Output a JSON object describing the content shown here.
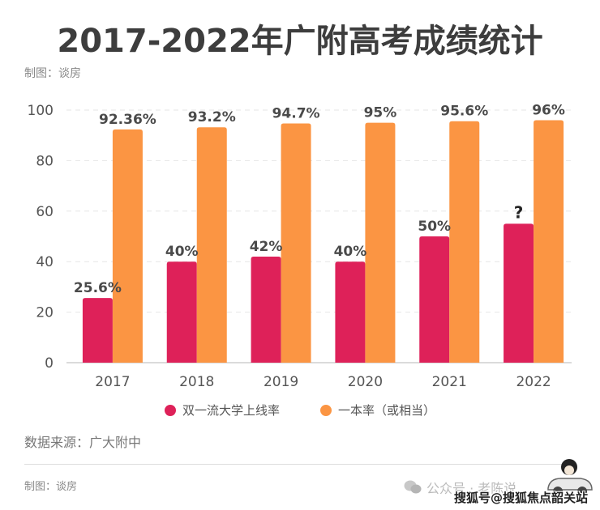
{
  "title": "2017-2022年广附高考成绩统计",
  "credit_top": "制图：谈房",
  "source": "数据来源：广大附中",
  "credit_bottom": "制图：谈房",
  "watermark_wechat": "公众号 · 老陈说",
  "watermark_sohu": "搜狐号@搜狐焦点韶关站",
  "colors": {
    "series1": "#de2159",
    "series2": "#fb9543",
    "axis_text": "#555555",
    "grid": "#e6e6e6"
  },
  "chart_data": {
    "type": "bar",
    "title": "2017-2022年广附高考成绩统计",
    "xlabel": "",
    "ylabel": "",
    "categories": [
      "2017",
      "2018",
      "2019",
      "2020",
      "2021",
      "2022"
    ],
    "ylim": [
      0,
      100
    ],
    "yticks": [
      0,
      20,
      40,
      60,
      80,
      100
    ],
    "grid": true,
    "legend_position": "bottom",
    "series": [
      {
        "name": "双一流大学上线率",
        "values": [
          25.6,
          40,
          42,
          40,
          50,
          55
        ],
        "labels": [
          "25.6%",
          "40%",
          "42%",
          "40%",
          "50%",
          "?"
        ]
      },
      {
        "name": "一本率（或相当）",
        "values": [
          92.36,
          93.2,
          94.7,
          95,
          95.6,
          96
        ],
        "labels": [
          "92.36%",
          "93.2%",
          "94.7%",
          "95%",
          "95.6%",
          "96%"
        ]
      }
    ]
  }
}
